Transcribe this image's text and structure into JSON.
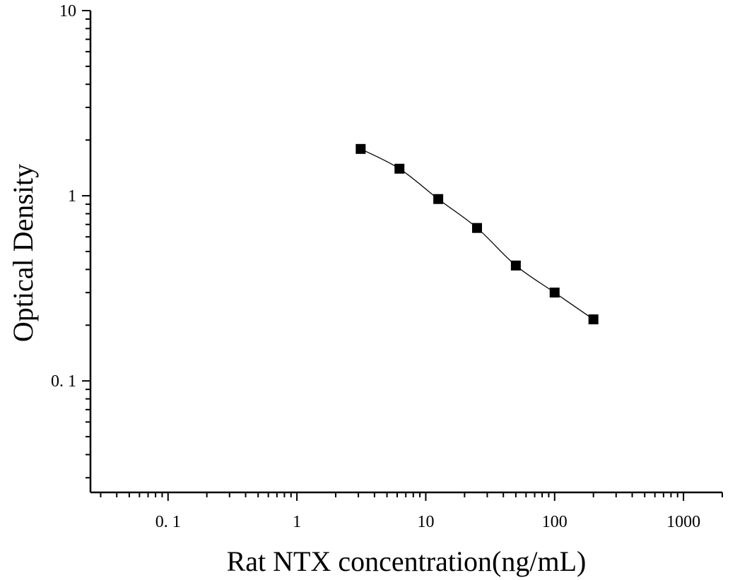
{
  "chart_data": {
    "type": "scatter",
    "xlabel": "Rat NTX concentration(ng/mL)",
    "ylabel": "Optical Density",
    "xscale": "log",
    "yscale": "log",
    "xlim": [
      0.025,
      2000
    ],
    "ylim": [
      0.025,
      10
    ],
    "x_ticks": [
      {
        "value": 0.1,
        "label": "0. 1"
      },
      {
        "value": 1,
        "label": "1"
      },
      {
        "value": 10,
        "label": "10"
      },
      {
        "value": 100,
        "label": "100"
      },
      {
        "value": 1000,
        "label": "1000"
      }
    ],
    "y_ticks": [
      {
        "value": 0.1,
        "label": "0. 1"
      },
      {
        "value": 1,
        "label": "1"
      },
      {
        "value": 10,
        "label": "10"
      }
    ],
    "grid": false,
    "series": [
      {
        "x": [
          3.125,
          6.25,
          12.5,
          25,
          50,
          100,
          200
        ],
        "y": [
          1.79,
          1.4,
          0.96,
          0.67,
          0.42,
          0.3,
          0.215
        ],
        "marker": "square",
        "color": "#000000",
        "fit_line": true
      }
    ]
  }
}
